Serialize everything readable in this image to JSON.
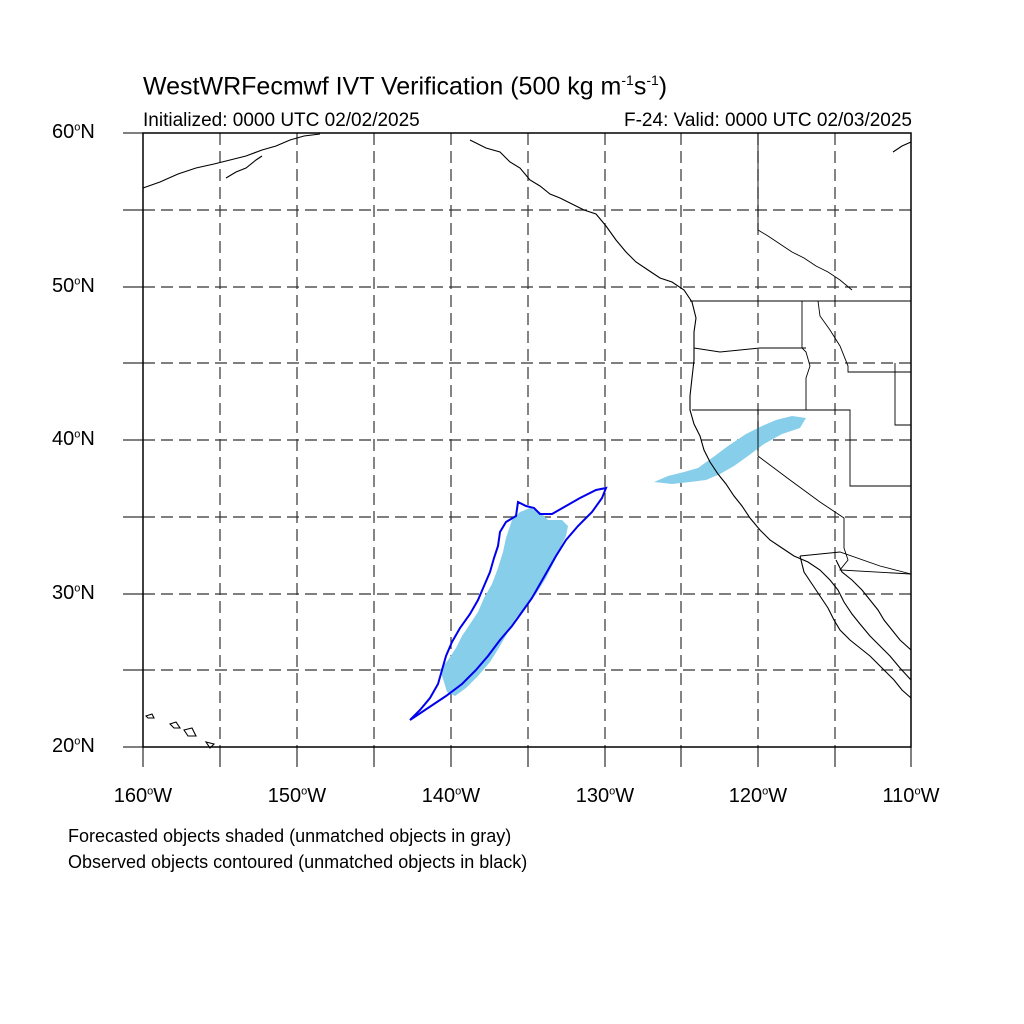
{
  "title": {
    "prefix": "WestWRFecmwf IVT Verification (500 kg m",
    "exp1": "-1",
    "mid": "s",
    "exp2": "-1",
    "suffix": ")"
  },
  "subtitle_left": "Initialized: 0000 UTC 02/02/2025",
  "subtitle_right": "F-24: Valid: 0000 UTC 02/03/2025",
  "lat_labels": [
    {
      "num": "60",
      "deg": "o",
      "hemi": "N"
    },
    {
      "num": "50",
      "deg": "o",
      "hemi": "N"
    },
    {
      "num": "40",
      "deg": "o",
      "hemi": "N"
    },
    {
      "num": "30",
      "deg": "o",
      "hemi": "N"
    },
    {
      "num": "20",
      "deg": "o",
      "hemi": "N"
    }
  ],
  "lon_labels": [
    {
      "num": "160",
      "deg": "o",
      "hemi": "W"
    },
    {
      "num": "150",
      "deg": "o",
      "hemi": "W"
    },
    {
      "num": "140",
      "deg": "o",
      "hemi": "W"
    },
    {
      "num": "130",
      "deg": "o",
      "hemi": "W"
    },
    {
      "num": "120",
      "deg": "o",
      "hemi": "W"
    },
    {
      "num": "110",
      "deg": "o",
      "hemi": "W"
    }
  ],
  "notes": [
    "Forecasted objects shaded (unmatched objects in gray)",
    "Observed objects contoured (unmatched objects in black)"
  ],
  "colors": {
    "forecast_fill": "#87ceeb",
    "observed_contour": "#0000ee",
    "coastline": "#000000",
    "grid": "#333333"
  },
  "map_extent": {
    "lon_min": -160,
    "lon_max": -110,
    "lat_min": 20,
    "lat_max": 60
  }
}
